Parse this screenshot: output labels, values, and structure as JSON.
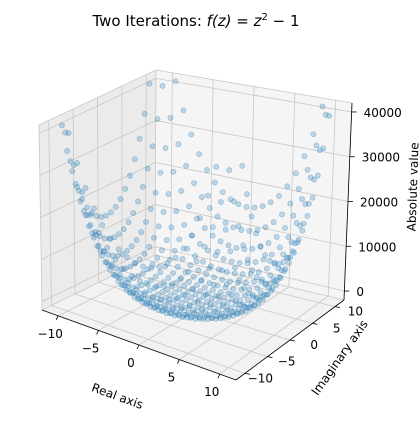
{
  "chart_data": {
    "type": "scatter",
    "title": "Two Iterations: f(z) = z² − 1",
    "title_parts": {
      "prefix": "Two Iterations: ",
      "lhs": "f(z) = z",
      "exp": "2",
      "rhs": " − 1"
    },
    "xlabel": "Real axis",
    "ylabel": "Imaginary axis",
    "zlabel": "Absolute value",
    "xlim": [
      -12,
      12
    ],
    "ylim": [
      -12,
      12
    ],
    "zlim": [
      -2000,
      42000
    ],
    "xticks": [
      -10,
      -5,
      0,
      5,
      10
    ],
    "yticks": [
      -10,
      -5,
      0,
      5,
      10
    ],
    "zticks": [
      0,
      10000,
      20000,
      30000,
      40000
    ],
    "xtick_labels": [
      "−10",
      "−5",
      "0",
      "5",
      "10"
    ],
    "ytick_labels": [
      "−10",
      "−5",
      "0",
      "5",
      "10"
    ],
    "ztick_labels": [
      "0",
      "10000",
      "20000",
      "30000",
      "40000"
    ],
    "grid": true,
    "marker_color": "#1f77b4",
    "marker_alpha": 0.25,
    "function": "|f(f(z))| with f(z) = z^2 - 1",
    "grid_points": {
      "start": -11,
      "stop": 11,
      "step": 1
    }
  }
}
